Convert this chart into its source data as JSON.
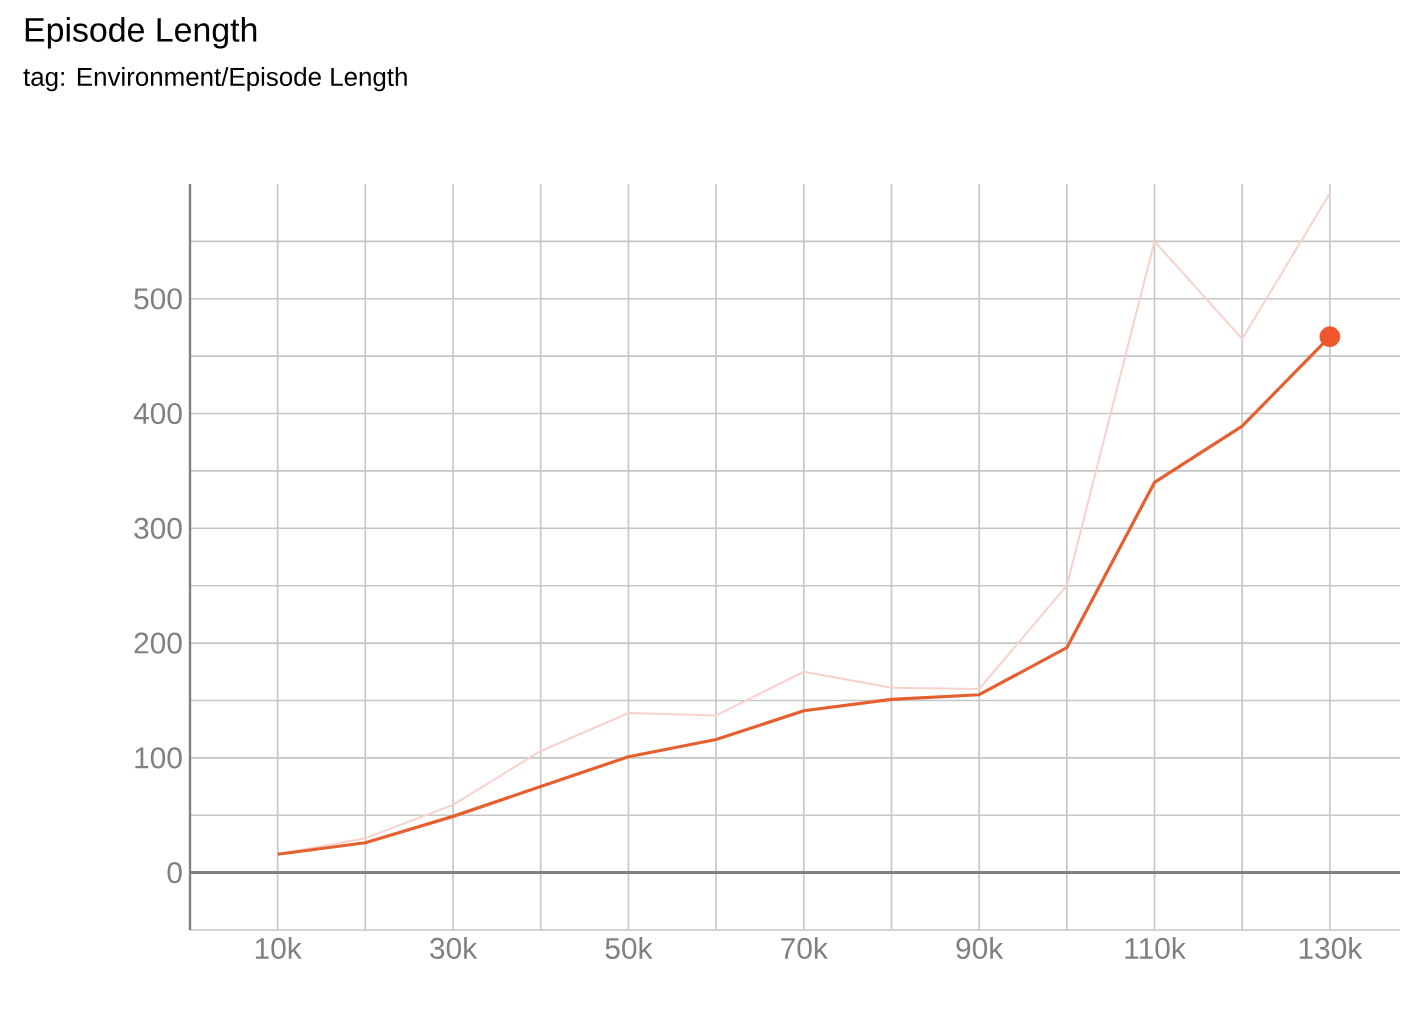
{
  "chart_data": {
    "type": "line",
    "title": "Episode Length",
    "subtitle": "tag: Environment/Episode Length",
    "x": [
      10000,
      20000,
      30000,
      40000,
      50000,
      60000,
      70000,
      80000,
      90000,
      100000,
      110000,
      120000,
      130000
    ],
    "series": [
      {
        "color": "#f6d2ca",
        "values": [
          16,
          30,
          59,
          106,
          139,
          137,
          175,
          161,
          160,
          250,
          550,
          465,
          592
        ]
      },
      {
        "color": "#e5602e",
        "values": [
          16,
          26,
          49,
          75,
          101,
          116,
          141,
          151,
          155,
          196,
          340,
          389,
          467
        ]
      },
      {
        "type": "scatter",
        "color": "#f0562c",
        "x": [
          130000
        ],
        "values": [
          467
        ]
      }
    ],
    "xlim": [
      0,
      138000
    ],
    "xticks": [
      {
        "value": 10000,
        "label": "10k"
      },
      {
        "value": 20000,
        "label": null
      },
      {
        "value": 30000,
        "label": "30k"
      },
      {
        "value": 40000,
        "label": null
      },
      {
        "value": 50000,
        "label": "50k"
      },
      {
        "value": 60000,
        "label": null
      },
      {
        "value": 70000,
        "label": "70k"
      },
      {
        "value": 80000,
        "label": null
      },
      {
        "value": 90000,
        "label": "90k"
      },
      {
        "value": 100000,
        "label": null
      },
      {
        "value": 110000,
        "label": "110k"
      },
      {
        "value": 120000,
        "label": null
      },
      {
        "value": 130000,
        "label": "130k"
      }
    ],
    "ylim": [
      -50,
      600
    ],
    "yticks": [
      {
        "value": -50,
        "label": null
      },
      0,
      {
        "value": 50,
        "label": null
      },
      100,
      {
        "value": 150,
        "label": null
      },
      200,
      {
        "value": 250,
        "label": null
      },
      300,
      {
        "value": 350,
        "label": null
      },
      400,
      {
        "value": 450,
        "label": null
      },
      500,
      {
        "value": 550,
        "label": null
      }
    ],
    "grid": true,
    "line_style": "solid"
  }
}
